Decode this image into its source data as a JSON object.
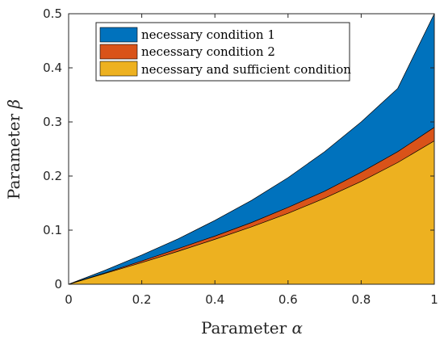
{
  "chart_data": {
    "type": "area",
    "xlabel_text": "Parameter",
    "xlabel_symbol": "α",
    "ylabel_text": "Parameter",
    "ylabel_symbol": "β",
    "xlim": [
      0,
      1
    ],
    "ylim": [
      0,
      0.5
    ],
    "x_ticks": [
      "0",
      "0.2",
      "0.4",
      "0.6",
      "0.8",
      "1"
    ],
    "x_tick_values": [
      0,
      0.2,
      0.4,
      0.6,
      0.8,
      1
    ],
    "y_ticks": [
      "0",
      "0.1",
      "0.2",
      "0.3",
      "0.4",
      "0.5"
    ],
    "y_tick_values": [
      0,
      0.1,
      0.2,
      0.3,
      0.4,
      0.5
    ],
    "grid": false,
    "legend_position": "top-left",
    "x": [
      0,
      0.1,
      0.2,
      0.3,
      0.4,
      0.5,
      0.6,
      0.7,
      0.8,
      0.9,
      1.0
    ],
    "series": [
      {
        "name": "necessary condition 1",
        "color": "#0072BD",
        "upper": [
          0,
          0.026,
          0.054,
          0.084,
          0.118,
          0.155,
          0.197,
          0.245,
          0.3,
          0.362,
          0.5
        ]
      },
      {
        "name": "necessary condition 2",
        "color": "#D95319",
        "upper": [
          0,
          0.021,
          0.043,
          0.066,
          0.089,
          0.114,
          0.142,
          0.172,
          0.207,
          0.245,
          0.29
        ]
      },
      {
        "name": "necessary and sufficient condition",
        "color": "#EDB120",
        "upper": [
          0,
          0.02,
          0.04,
          0.061,
          0.083,
          0.106,
          0.131,
          0.159,
          0.19,
          0.225,
          0.265
        ]
      }
    ]
  }
}
